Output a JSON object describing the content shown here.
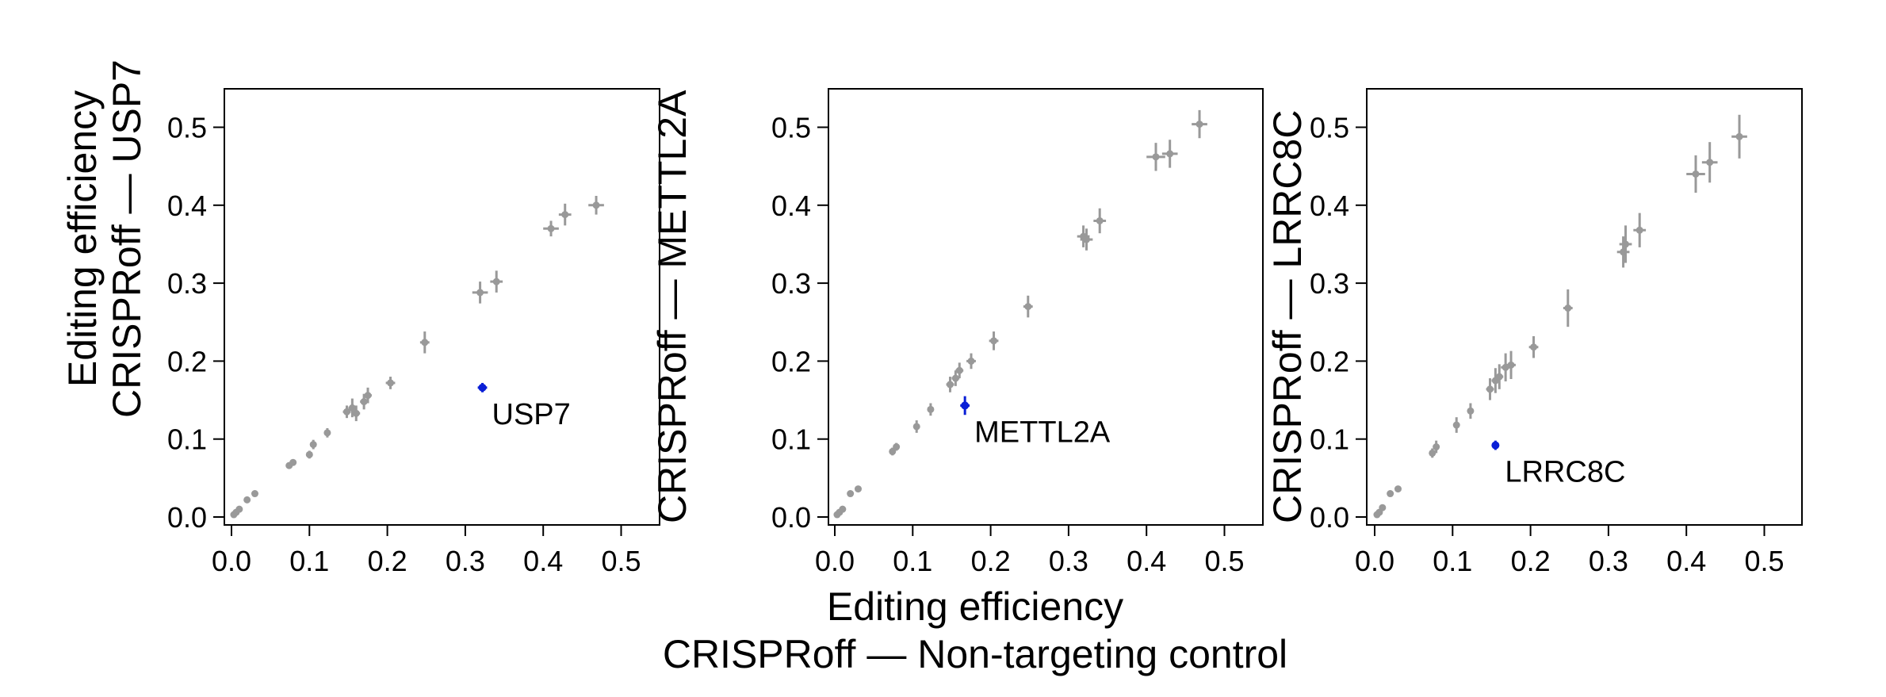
{
  "chart_data": [
    {
      "type": "scatter",
      "ylabel": [
        "Editing efficiency",
        "CRISPRoff — USP7"
      ],
      "xlim": [
        0,
        0.55
      ],
      "ylim": [
        0,
        0.55
      ],
      "xticks": [
        "0.0",
        "0.1",
        "0.2",
        "0.3",
        "0.4",
        "0.5"
      ],
      "yticks": [
        "0.0",
        "0.1",
        "0.2",
        "0.3",
        "0.4",
        "0.5"
      ],
      "highlight": {
        "label": "USP7",
        "x": 0.322,
        "y": 0.166,
        "xerr": 0.006,
        "yerr": 0.006,
        "color": "#0a1fd6"
      },
      "points": [
        [
          0.003,
          0.003,
          0.001,
          0.002
        ],
        [
          0.006,
          0.006,
          0.001,
          0.002
        ],
        [
          0.01,
          0.01,
          0.002,
          0.002
        ],
        [
          0.02,
          0.022,
          0.002,
          0.002
        ],
        [
          0.03,
          0.03,
          0.002,
          0.003
        ],
        [
          0.074,
          0.066,
          0.003,
          0.004
        ],
        [
          0.079,
          0.07,
          0.003,
          0.004
        ],
        [
          0.1,
          0.08,
          0.003,
          0.005
        ],
        [
          0.105,
          0.093,
          0.003,
          0.006
        ],
        [
          0.123,
          0.108,
          0.004,
          0.006
        ],
        [
          0.148,
          0.135,
          0.005,
          0.008
        ],
        [
          0.155,
          0.14,
          0.005,
          0.012
        ],
        [
          0.16,
          0.133,
          0.005,
          0.01
        ],
        [
          0.17,
          0.148,
          0.005,
          0.01
        ],
        [
          0.175,
          0.156,
          0.005,
          0.01
        ],
        [
          0.204,
          0.172,
          0.006,
          0.008
        ],
        [
          0.248,
          0.224,
          0.006,
          0.014
        ],
        [
          0.319,
          0.288,
          0.01,
          0.014
        ],
        [
          0.34,
          0.302,
          0.008,
          0.014
        ],
        [
          0.41,
          0.37,
          0.01,
          0.01
        ],
        [
          0.428,
          0.388,
          0.008,
          0.014
        ],
        [
          0.468,
          0.4,
          0.01,
          0.012
        ]
      ]
    },
    {
      "type": "scatter",
      "ylabel": [
        "CRISPRoff — METTL2A"
      ],
      "xlim": [
        0,
        0.55
      ],
      "ylim": [
        0,
        0.55
      ],
      "xticks": [
        "0.0",
        "0.1",
        "0.2",
        "0.3",
        "0.4",
        "0.5"
      ],
      "yticks": [
        "0.0",
        "0.1",
        "0.2",
        "0.3",
        "0.4",
        "0.5"
      ],
      "xlabel": [
        "Editing efficiency",
        "CRISPRoff — Non-targeting control"
      ],
      "highlight": {
        "label": "METTL2A",
        "x": 0.167,
        "y": 0.143,
        "xerr": 0.006,
        "yerr": 0.012,
        "color": "#0a1fd6"
      },
      "points": [
        [
          0.003,
          0.003,
          0.001,
          0.002
        ],
        [
          0.006,
          0.006,
          0.001,
          0.002
        ],
        [
          0.01,
          0.01,
          0.002,
          0.002
        ],
        [
          0.02,
          0.03,
          0.002,
          0.003
        ],
        [
          0.03,
          0.036,
          0.002,
          0.003
        ],
        [
          0.074,
          0.084,
          0.003,
          0.005
        ],
        [
          0.079,
          0.09,
          0.003,
          0.005
        ],
        [
          0.105,
          0.116,
          0.003,
          0.008
        ],
        [
          0.123,
          0.138,
          0.004,
          0.008
        ],
        [
          0.148,
          0.17,
          0.005,
          0.01
        ],
        [
          0.155,
          0.178,
          0.005,
          0.01
        ],
        [
          0.16,
          0.188,
          0.005,
          0.01
        ],
        [
          0.175,
          0.2,
          0.006,
          0.01
        ],
        [
          0.204,
          0.226,
          0.006,
          0.012
        ],
        [
          0.248,
          0.27,
          0.006,
          0.014
        ],
        [
          0.319,
          0.36,
          0.008,
          0.014
        ],
        [
          0.323,
          0.356,
          0.008,
          0.014
        ],
        [
          0.34,
          0.38,
          0.008,
          0.016
        ],
        [
          0.412,
          0.462,
          0.012,
          0.018
        ],
        [
          0.43,
          0.466,
          0.01,
          0.018
        ],
        [
          0.468,
          0.504,
          0.01,
          0.018
        ]
      ]
    },
    {
      "type": "scatter",
      "ylabel": [
        "CRISPRoff — LRRC8C"
      ],
      "xlim": [
        0,
        0.55
      ],
      "ylim": [
        0,
        0.55
      ],
      "xticks": [
        "0.0",
        "0.1",
        "0.2",
        "0.3",
        "0.4",
        "0.5"
      ],
      "yticks": [
        "0.0",
        "0.1",
        "0.2",
        "0.3",
        "0.4",
        "0.5"
      ],
      "highlight": {
        "label": "LRRC8C",
        "x": 0.155,
        "y": 0.092,
        "xerr": 0.002,
        "yerr": 0.006,
        "color": "#0a1fd6"
      },
      "points": [
        [
          0.003,
          0.003,
          0.001,
          0.002
        ],
        [
          0.006,
          0.006,
          0.001,
          0.002
        ],
        [
          0.01,
          0.012,
          0.002,
          0.003
        ],
        [
          0.02,
          0.03,
          0.002,
          0.003
        ],
        [
          0.03,
          0.036,
          0.002,
          0.003
        ],
        [
          0.074,
          0.082,
          0.003,
          0.006
        ],
        [
          0.079,
          0.09,
          0.003,
          0.008
        ],
        [
          0.105,
          0.118,
          0.003,
          0.01
        ],
        [
          0.123,
          0.136,
          0.004,
          0.01
        ],
        [
          0.148,
          0.164,
          0.005,
          0.014
        ],
        [
          0.155,
          0.175,
          0.005,
          0.016
        ],
        [
          0.16,
          0.18,
          0.005,
          0.016
        ],
        [
          0.168,
          0.192,
          0.006,
          0.018
        ],
        [
          0.175,
          0.195,
          0.006,
          0.018
        ],
        [
          0.204,
          0.218,
          0.006,
          0.014
        ],
        [
          0.248,
          0.268,
          0.006,
          0.024
        ],
        [
          0.319,
          0.34,
          0.008,
          0.02
        ],
        [
          0.322,
          0.35,
          0.008,
          0.024
        ],
        [
          0.34,
          0.368,
          0.008,
          0.022
        ],
        [
          0.412,
          0.44,
          0.012,
          0.024
        ],
        [
          0.43,
          0.455,
          0.01,
          0.026
        ],
        [
          0.468,
          0.488,
          0.01,
          0.028
        ]
      ]
    }
  ]
}
